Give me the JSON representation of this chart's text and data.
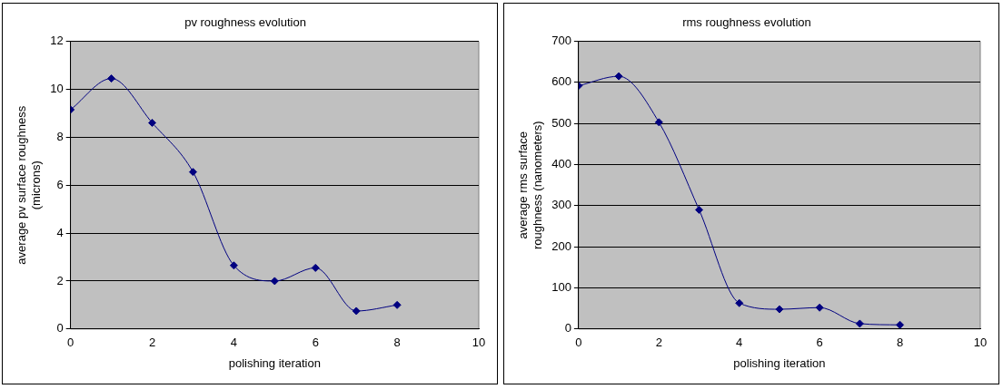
{
  "chart_data": [
    {
      "type": "line",
      "title": "pv roughness evolution",
      "xlabel": "polishing iteration",
      "ylabel": "average pv surface roughness (microns)",
      "x": [
        0,
        1,
        2,
        3,
        4,
        5,
        6,
        7,
        8
      ],
      "series": [
        {
          "color": "#000080",
          "values": [
            9.15,
            10.45,
            8.6,
            6.55,
            2.65,
            2.0,
            2.55,
            0.75,
            1.0
          ]
        }
      ],
      "xlim": [
        0,
        10
      ],
      "xticks": [
        0,
        2,
        4,
        6,
        8,
        10
      ],
      "ylim": [
        0,
        12
      ],
      "yticks": [
        0,
        2,
        4,
        6,
        8,
        10,
        12
      ],
      "grid": "y",
      "marker": "diamond",
      "line_style": "solid"
    },
    {
      "type": "line",
      "title": "rms roughness evolution",
      "xlabel": "polishing iteration",
      "ylabel": "average rms surface roughness (nanometers)",
      "x": [
        0,
        1,
        2,
        3,
        4,
        5,
        6,
        7,
        8
      ],
      "series": [
        {
          "color": "#000080",
          "values": [
            592,
            615,
            503,
            290,
            63,
            48,
            52,
            13,
            10
          ]
        }
      ],
      "xlim": [
        0,
        10
      ],
      "xticks": [
        0,
        2,
        4,
        6,
        8,
        10
      ],
      "ylim": [
        0,
        700
      ],
      "yticks": [
        0,
        100,
        200,
        300,
        400,
        500,
        600,
        700
      ],
      "grid": "y",
      "marker": "diamond",
      "line_style": "solid"
    }
  ]
}
